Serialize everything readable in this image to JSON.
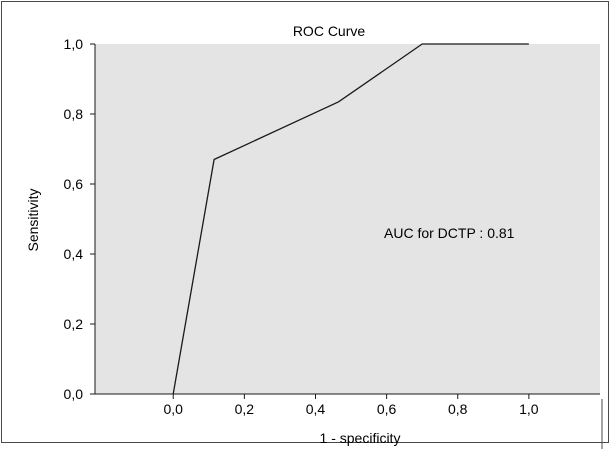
{
  "chart_data": {
    "type": "line",
    "title": "ROC Curve",
    "xlabel": "1 - specificity",
    "ylabel": "Sensitivity",
    "x_ticks": [
      "0,0",
      "0,2",
      "0,4",
      "0,6",
      "0,8",
      "1,0"
    ],
    "y_ticks": [
      "0,0",
      "0,2",
      "0,4",
      "0,6",
      "0,8",
      "1,0"
    ],
    "xlim": [
      -0.22,
      1.2
    ],
    "ylim": [
      0,
      1
    ],
    "grid": false,
    "plot_background": "#e4e4e4",
    "line_color": "#1a1a1a",
    "series": [
      {
        "x": [
          0.0,
          0.115,
          0.465,
          0.7,
          1.0
        ],
        "y": [
          0.0,
          0.67,
          0.835,
          1.0,
          1.0
        ]
      }
    ],
    "annotation": "AUC for DCTP : 0.81"
  }
}
